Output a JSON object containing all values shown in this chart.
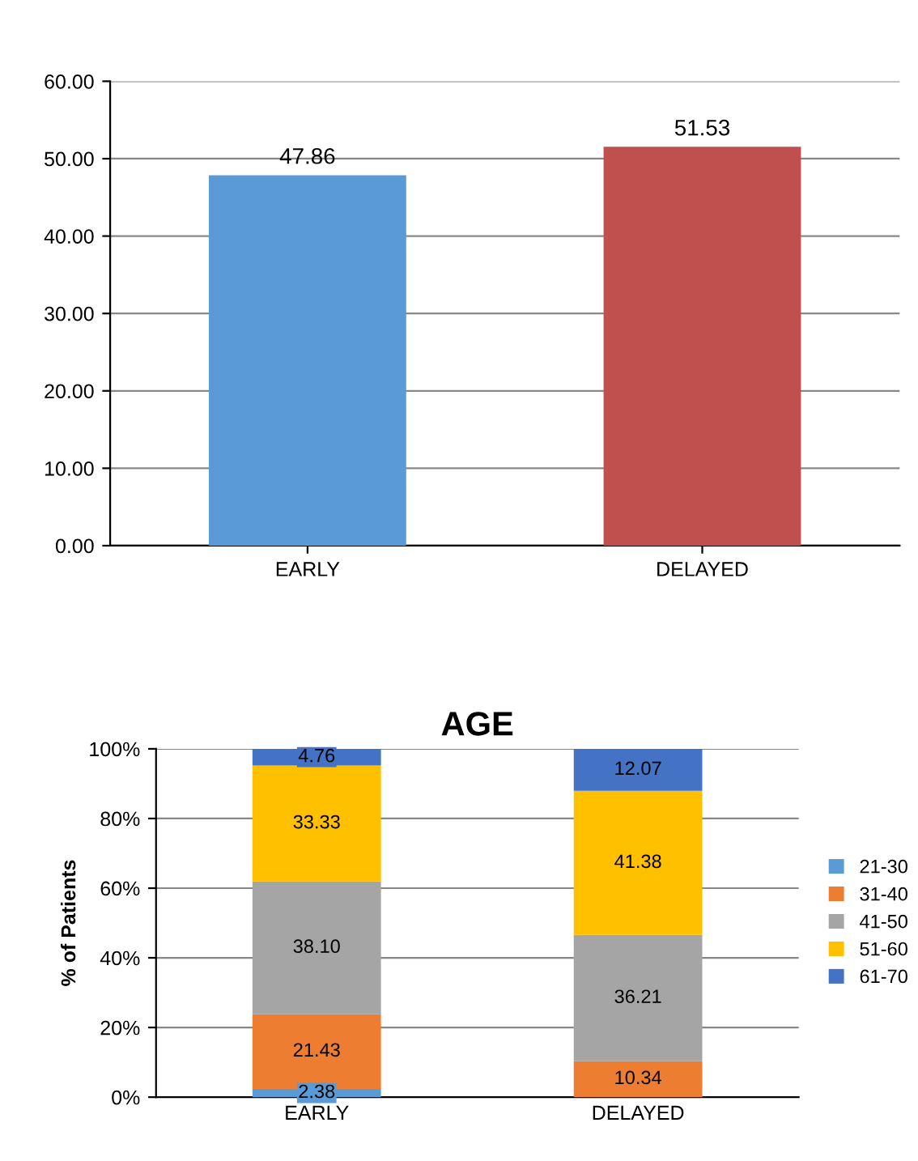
{
  "chart_data": [
    {
      "type": "bar",
      "categories": [
        "EARLY",
        "DELAYED"
      ],
      "values": [
        47.86,
        51.53
      ],
      "colors": [
        "#5b9bd5",
        "#c0504d"
      ],
      "ylim": [
        0,
        60
      ],
      "yticks": [
        {
          "value": 0,
          "label": "0.00"
        },
        {
          "value": 10,
          "label": "10.00"
        },
        {
          "value": 20,
          "label": "20.00"
        },
        {
          "value": 30,
          "label": "30.00"
        },
        {
          "value": 40,
          "label": "40.00"
        },
        {
          "value": 50,
          "label": "50.00"
        },
        {
          "value": 60,
          "label": "60.00"
        }
      ],
      "grid": "y",
      "data_labels": true
    },
    {
      "type": "bar",
      "title": "AGE",
      "ylabel": "% of Patients",
      "categories": [
        "EARLY",
        "DELAYED"
      ],
      "stacked": true,
      "ylim": [
        0,
        100
      ],
      "yticks": [
        {
          "value": 0,
          "label": "0%"
        },
        {
          "value": 20,
          "label": "20%"
        },
        {
          "value": 40,
          "label": "40%"
        },
        {
          "value": 60,
          "label": "60%"
        },
        {
          "value": 80,
          "label": "80%"
        },
        {
          "value": 100,
          "label": "100%"
        }
      ],
      "grid": "y",
      "legend": "right",
      "series": [
        {
          "name": "21-30",
          "color": "#5b9bd5",
          "values": [
            2.38,
            0
          ],
          "value_labels": [
            "2.38",
            null
          ]
        },
        {
          "name": "31-40",
          "color": "#ed7d31",
          "values": [
            21.43,
            10.34
          ],
          "value_labels": [
            "21.43",
            "10.34"
          ]
        },
        {
          "name": "41-50",
          "color": "#a5a5a5",
          "values": [
            38.1,
            36.21
          ],
          "value_labels": [
            "38.10",
            "36.21"
          ]
        },
        {
          "name": "51-60",
          "color": "#ffc000",
          "values": [
            33.33,
            41.38
          ],
          "value_labels": [
            "33.33",
            "41.38"
          ]
        },
        {
          "name": "61-70",
          "color": "#4472c4",
          "values": [
            4.76,
            12.07
          ],
          "value_labels": [
            "4.76",
            "12.07"
          ]
        }
      ]
    }
  ]
}
